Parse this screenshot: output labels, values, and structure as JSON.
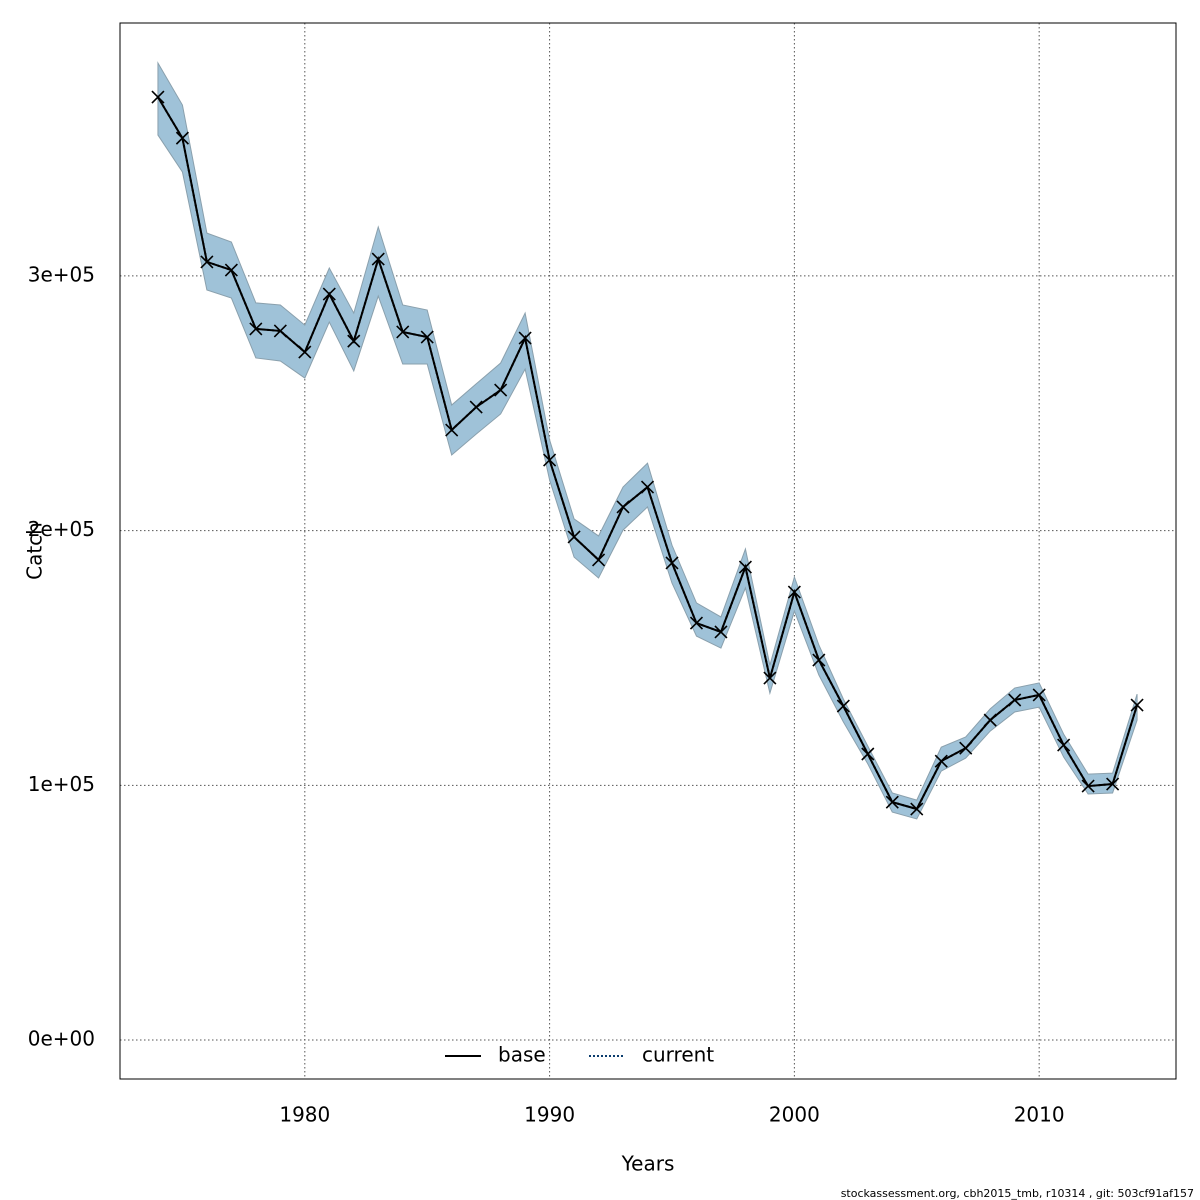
{
  "chart_data": {
    "type": "line",
    "x_label": "Years",
    "y_label": "Catch",
    "footnote": "stockassessment.org, cbh2015_tmb, r10314 , git: 503cf91af157",
    "x": [
      1974,
      1975,
      1976,
      1977,
      1978,
      1979,
      1980,
      1981,
      1982,
      1983,
      1984,
      1985,
      1986,
      1987,
      1988,
      1989,
      1990,
      1991,
      1992,
      1993,
      1994,
      1995,
      1996,
      1997,
      1998,
      1999,
      2000,
      2001,
      2002,
      2003,
      2004,
      2005,
      2006,
      2007,
      2008,
      2009,
      2010,
      2011,
      2012,
      2013,
      2014
    ],
    "series": [
      {
        "name": "base",
        "color": "#000000",
        "style": "solid",
        "values": [
          370200,
          354100,
          305500,
          302300,
          279200,
          278400,
          270100,
          292900,
          274400,
          306600,
          278000,
          276000,
          239500,
          248500,
          255200,
          275600,
          227700,
          197500,
          188500,
          209300,
          217100,
          187300,
          163700,
          160200,
          185700,
          142100,
          175900,
          149200,
          131100,
          112300,
          93400,
          90700,
          109500,
          114600,
          125600,
          133500,
          135500,
          115800,
          99700,
          100500,
          131500
        ]
      },
      {
        "name": "current",
        "color": "#0b3d6e",
        "style": "dotted",
        "values": [
          370200,
          354100,
          305500,
          302300,
          279200,
          278400,
          270100,
          292900,
          274400,
          306600,
          278000,
          276000,
          239500,
          248500,
          255200,
          275600,
          227700,
          197500,
          188500,
          209300,
          217100,
          187300,
          163700,
          160200,
          185700,
          142100,
          175900,
          149200,
          131100,
          112300,
          93400,
          90700,
          109500,
          114600,
          125600,
          133500,
          135500,
          115800,
          99700,
          100500,
          131500
        ]
      }
    ],
    "band": {
      "color": "#9fc2d8",
      "upper": [
        383600,
        367100,
        316800,
        313300,
        289400,
        288600,
        280700,
        303100,
        285400,
        319200,
        288600,
        286600,
        249300,
        257600,
        265800,
        285400,
        235600,
        204600,
        197900,
        217100,
        226500,
        194300,
        171600,
        166100,
        192800,
        147200,
        181800,
        155100,
        133900,
        115400,
        97000,
        94200,
        115000,
        119000,
        130000,
        138200,
        140200,
        120100,
        104400,
        104800,
        135800
      ],
      "lower": [
        355300,
        340800,
        294500,
        291300,
        267800,
        266600,
        259900,
        281900,
        262700,
        292100,
        265400,
        265400,
        229700,
        237900,
        245800,
        263400,
        219900,
        189600,
        181400,
        200200,
        209300,
        179400,
        158600,
        153900,
        177500,
        136200,
        168400,
        143300,
        124900,
        108400,
        89500,
        86800,
        105600,
        110700,
        121300,
        128800,
        130700,
        111100,
        96600,
        97000,
        125600
      ]
    },
    "xlim": [
      1972.45,
      2015.59
    ],
    "ylim": [
      -15300,
      399300
    ],
    "xticks": [
      1980,
      1990,
      2000,
      2010
    ],
    "yticks": [
      {
        "value": 0,
        "label": "0e+00"
      },
      {
        "value": 100000,
        "label": "1e+05"
      },
      {
        "value": 200000,
        "label": "2e+05"
      },
      {
        "value": 300000,
        "label": "3e+05"
      }
    ],
    "grid": true,
    "legend": "bottom"
  }
}
